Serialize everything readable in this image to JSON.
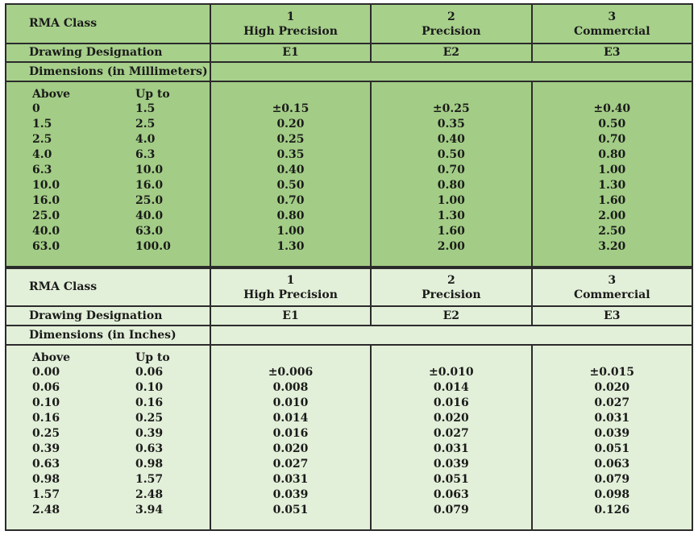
{
  "mm_table": {
    "class_label": "RMA Class",
    "classes": [
      {
        "num": "1",
        "name": "High Precision",
        "designation": "E1"
      },
      {
        "num": "2",
        "name": "Precision",
        "designation": "E2"
      },
      {
        "num": "3",
        "name": "Commercial",
        "designation": "E3"
      }
    ],
    "designation_label": "Drawing Designation",
    "dimensions_label": "Dimensions (in Millimeters)",
    "above_label": "Above",
    "upto_label": "Up to",
    "rows": [
      {
        "above": "0",
        "upto": "1.5",
        "e1": "±0.15",
        "e2": "±0.25",
        "e3": "±0.40"
      },
      {
        "above": "1.5",
        "upto": "2.5",
        "e1": "0.20",
        "e2": "0.35",
        "e3": "0.50"
      },
      {
        "above": "2.5",
        "upto": "4.0",
        "e1": "0.25",
        "e2": "0.40",
        "e3": "0.70"
      },
      {
        "above": "4.0",
        "upto": "6.3",
        "e1": "0.35",
        "e2": "0.50",
        "e3": "0.80"
      },
      {
        "above": "6.3",
        "upto": "10.0",
        "e1": "0.40",
        "e2": "0.70",
        "e3": "1.00"
      },
      {
        "above": "10.0",
        "upto": "16.0",
        "e1": "0.50",
        "e2": "0.80",
        "e3": "1.30"
      },
      {
        "above": "16.0",
        "upto": "25.0",
        "e1": "0.70",
        "e2": "1.00",
        "e3": "1.60"
      },
      {
        "above": "25.0",
        "upto": "40.0",
        "e1": "0.80",
        "e2": "1.30",
        "e3": "2.00"
      },
      {
        "above": "40.0",
        "upto": "63.0",
        "e1": "1.00",
        "e2": "1.60",
        "e3": "2.50"
      },
      {
        "above": "63.0",
        "upto": "100.0",
        "e1": "1.30",
        "e2": "2.00",
        "e3": "3.20"
      }
    ]
  },
  "in_table": {
    "class_label": "RMA Class",
    "classes": [
      {
        "num": "1",
        "name": "High Precision",
        "designation": "E1"
      },
      {
        "num": "2",
        "name": "Precision",
        "designation": "E2"
      },
      {
        "num": "3",
        "name": "Commercial",
        "designation": "E3"
      }
    ],
    "designation_label": "Drawing Designation",
    "dimensions_label": "Dimensions (in Inches)",
    "above_label": "Above",
    "upto_label": "Up to",
    "rows": [
      {
        "above": "0.00",
        "upto": "0.06",
        "e1": "±0.006",
        "e2": "±0.010",
        "e3": "±0.015"
      },
      {
        "above": "0.06",
        "upto": "0.10",
        "e1": "0.008",
        "e2": "0.014",
        "e3": "0.020"
      },
      {
        "above": "0.10",
        "upto": "0.16",
        "e1": "0.010",
        "e2": "0.016",
        "e3": "0.027"
      },
      {
        "above": "0.16",
        "upto": "0.25",
        "e1": "0.014",
        "e2": "0.020",
        "e3": "0.031"
      },
      {
        "above": "0.25",
        "upto": "0.39",
        "e1": "0.016",
        "e2": "0.027",
        "e3": "0.039"
      },
      {
        "above": "0.39",
        "upto": "0.63",
        "e1": "0.020",
        "e2": "0.031",
        "e3": "0.051"
      },
      {
        "above": "0.63",
        "upto": "0.98",
        "e1": "0.027",
        "e2": "0.039",
        "e3": "0.063"
      },
      {
        "above": "0.98",
        "upto": "1.57",
        "e1": "0.031",
        "e2": "0.051",
        "e3": "0.079"
      },
      {
        "above": "1.57",
        "upto": "2.48",
        "e1": "0.039",
        "e2": "0.063",
        "e3": "0.098"
      },
      {
        "above": "2.48",
        "upto": "3.94",
        "e1": "0.051",
        "e2": "0.079",
        "e3": "0.126"
      }
    ]
  }
}
